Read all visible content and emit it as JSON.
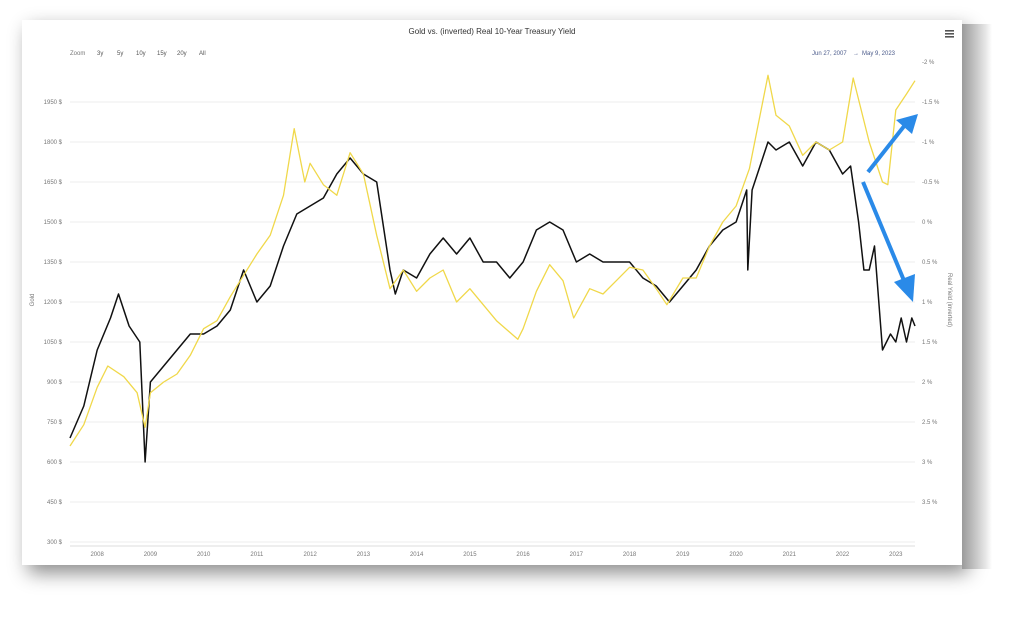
{
  "chart_data": {
    "type": "line",
    "title": "Gold vs. (inverted) Real 10-Year Treasury Yield",
    "date_range": {
      "from": "Jun 27, 2007",
      "arrow": "→",
      "to": "May 9, 2023"
    },
    "zoom": {
      "label": "Zoom",
      "buttons": [
        "3y",
        "5y",
        "10y",
        "15y",
        "20y",
        "All"
      ]
    },
    "xlabel": "",
    "x_ticks": [
      "2008",
      "2009",
      "2010",
      "2011",
      "2012",
      "2013",
      "2014",
      "2015",
      "2016",
      "2017",
      "2018",
      "2019",
      "2020",
      "2021",
      "2022",
      "2023"
    ],
    "xlim": [
      2007.49,
      2023.36
    ],
    "y_left": {
      "label": "Gold",
      "ticks": [
        "300 $",
        "450 $",
        "600 $",
        "750 $",
        "900 $",
        "1050 $",
        "1200 $",
        "1350 $",
        "1500 $",
        "1650 $",
        "1800 $",
        "1950 $"
      ],
      "lim": [
        300,
        2100
      ]
    },
    "y_right": {
      "label": "Real Yield (inverted)",
      "ticks": [
        "-2 %",
        "-1.5 %",
        "-1 %",
        "-0.5 %",
        "0 %",
        "0.5 %",
        "1 %",
        "1.5 %",
        "2 %",
        "2.5 %",
        "3 %",
        "3.5 %"
      ],
      "lim": [
        -2,
        4
      ],
      "inverted": true
    },
    "series": [
      {
        "name": "Gold",
        "axis": "left",
        "color": "#f0d84a",
        "points": [
          [
            2007.49,
            660
          ],
          [
            2007.75,
            740
          ],
          [
            2008.0,
            880
          ],
          [
            2008.2,
            960
          ],
          [
            2008.5,
            920
          ],
          [
            2008.75,
            860
          ],
          [
            2008.9,
            730
          ],
          [
            2009.0,
            860
          ],
          [
            2009.25,
            900
          ],
          [
            2009.5,
            930
          ],
          [
            2009.75,
            1000
          ],
          [
            2010.0,
            1100
          ],
          [
            2010.25,
            1130
          ],
          [
            2010.5,
            1220
          ],
          [
            2010.75,
            1300
          ],
          [
            2011.0,
            1380
          ],
          [
            2011.25,
            1450
          ],
          [
            2011.5,
            1600
          ],
          [
            2011.7,
            1850
          ],
          [
            2011.9,
            1650
          ],
          [
            2012.0,
            1720
          ],
          [
            2012.25,
            1640
          ],
          [
            2012.5,
            1600
          ],
          [
            2012.75,
            1760
          ],
          [
            2013.0,
            1680
          ],
          [
            2013.25,
            1450
          ],
          [
            2013.5,
            1250
          ],
          [
            2013.75,
            1320
          ],
          [
            2014.0,
            1240
          ],
          [
            2014.25,
            1290
          ],
          [
            2014.5,
            1320
          ],
          [
            2014.75,
            1200
          ],
          [
            2015.0,
            1250
          ],
          [
            2015.25,
            1190
          ],
          [
            2015.5,
            1130
          ],
          [
            2015.9,
            1060
          ],
          [
            2016.0,
            1100
          ],
          [
            2016.25,
            1240
          ],
          [
            2016.5,
            1340
          ],
          [
            2016.75,
            1280
          ],
          [
            2016.95,
            1140
          ],
          [
            2017.25,
            1250
          ],
          [
            2017.5,
            1230
          ],
          [
            2017.75,
            1280
          ],
          [
            2018.0,
            1330
          ],
          [
            2018.25,
            1320
          ],
          [
            2018.5,
            1250
          ],
          [
            2018.7,
            1190
          ],
          [
            2019.0,
            1290
          ],
          [
            2019.25,
            1290
          ],
          [
            2019.5,
            1410
          ],
          [
            2019.75,
            1500
          ],
          [
            2020.0,
            1560
          ],
          [
            2020.25,
            1700
          ],
          [
            2020.6,
            2050
          ],
          [
            2020.75,
            1900
          ],
          [
            2021.0,
            1860
          ],
          [
            2021.25,
            1750
          ],
          [
            2021.5,
            1800
          ],
          [
            2021.75,
            1770
          ],
          [
            2022.0,
            1800
          ],
          [
            2022.2,
            2040
          ],
          [
            2022.5,
            1800
          ],
          [
            2022.75,
            1650
          ],
          [
            2022.85,
            1640
          ],
          [
            2023.0,
            1920
          ],
          [
            2023.2,
            1980
          ],
          [
            2023.36,
            2030
          ]
        ]
      },
      {
        "name": "Real Yield (inverted)",
        "axis": "right",
        "color": "#111111",
        "points": [
          [
            2007.49,
            2.7
          ],
          [
            2007.75,
            2.3
          ],
          [
            2008.0,
            1.6
          ],
          [
            2008.25,
            1.2
          ],
          [
            2008.4,
            0.9
          ],
          [
            2008.6,
            1.3
          ],
          [
            2008.8,
            1.5
          ],
          [
            2008.9,
            3.0
          ],
          [
            2009.0,
            2.0
          ],
          [
            2009.25,
            1.8
          ],
          [
            2009.5,
            1.6
          ],
          [
            2009.75,
            1.4
          ],
          [
            2010.0,
            1.4
          ],
          [
            2010.25,
            1.3
          ],
          [
            2010.5,
            1.1
          ],
          [
            2010.75,
            0.6
          ],
          [
            2011.0,
            1.0
          ],
          [
            2011.25,
            0.8
          ],
          [
            2011.5,
            0.3
          ],
          [
            2011.75,
            -0.1
          ],
          [
            2012.0,
            -0.2
          ],
          [
            2012.25,
            -0.3
          ],
          [
            2012.5,
            -0.6
          ],
          [
            2012.75,
            -0.8
          ],
          [
            2013.0,
            -0.6
          ],
          [
            2013.25,
            -0.5
          ],
          [
            2013.5,
            0.6
          ],
          [
            2013.6,
            0.9
          ],
          [
            2013.75,
            0.6
          ],
          [
            2014.0,
            0.7
          ],
          [
            2014.25,
            0.4
          ],
          [
            2014.5,
            0.2
          ],
          [
            2014.75,
            0.4
          ],
          [
            2015.0,
            0.2
          ],
          [
            2015.25,
            0.5
          ],
          [
            2015.5,
            0.5
          ],
          [
            2015.75,
            0.7
          ],
          [
            2016.0,
            0.5
          ],
          [
            2016.25,
            0.1
          ],
          [
            2016.5,
            0.0
          ],
          [
            2016.75,
            0.1
          ],
          [
            2017.0,
            0.5
          ],
          [
            2017.25,
            0.4
          ],
          [
            2017.5,
            0.5
          ],
          [
            2017.75,
            0.5
          ],
          [
            2018.0,
            0.5
          ],
          [
            2018.25,
            0.7
          ],
          [
            2018.5,
            0.8
          ],
          [
            2018.75,
            1.0
          ],
          [
            2019.0,
            0.8
          ],
          [
            2019.25,
            0.6
          ],
          [
            2019.5,
            0.3
          ],
          [
            2019.75,
            0.1
          ],
          [
            2020.0,
            0.0
          ],
          [
            2020.2,
            -0.4
          ],
          [
            2020.22,
            0.6
          ],
          [
            2020.3,
            -0.4
          ],
          [
            2020.6,
            -1.0
          ],
          [
            2020.75,
            -0.9
          ],
          [
            2021.0,
            -1.0
          ],
          [
            2021.25,
            -0.7
          ],
          [
            2021.5,
            -1.0
          ],
          [
            2021.75,
            -0.9
          ],
          [
            2022.0,
            -0.6
          ],
          [
            2022.15,
            -0.7
          ],
          [
            2022.3,
            0.0
          ],
          [
            2022.4,
            0.6
          ],
          [
            2022.5,
            0.6
          ],
          [
            2022.6,
            0.3
          ],
          [
            2022.75,
            1.6
          ],
          [
            2022.9,
            1.4
          ],
          [
            2023.0,
            1.5
          ],
          [
            2023.1,
            1.2
          ],
          [
            2023.2,
            1.5
          ],
          [
            2023.3,
            1.2
          ],
          [
            2023.36,
            1.3
          ]
        ]
      }
    ],
    "annotations": [
      {
        "type": "arrow",
        "color": "#2a8ae8",
        "direction": "up",
        "target_series": "Gold"
      },
      {
        "type": "arrow",
        "color": "#2a8ae8",
        "direction": "down",
        "target_series": "Real Yield (inverted)"
      }
    ],
    "grid": true,
    "legend": "none"
  }
}
